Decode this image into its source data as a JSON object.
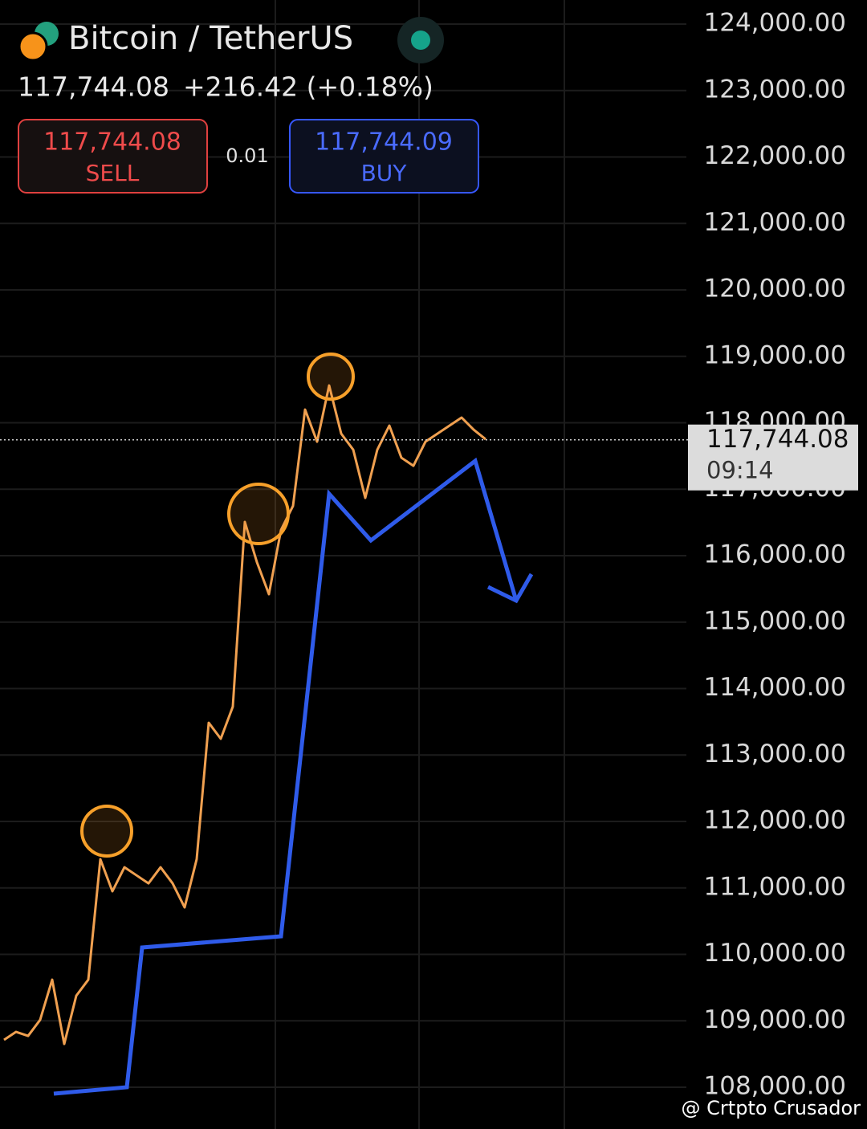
{
  "header": {
    "title": "Bitcoin / TetherUS",
    "price": "117,744.08",
    "change": "+216.42 (+0.18%)",
    "sell_price": "117,744.08",
    "sell_label": "SELL",
    "spread": "0.01",
    "buy_price": "117,744.09",
    "buy_label": "BUY"
  },
  "watermark": "@ Crtpto Crusador",
  "chart_data": {
    "type": "line",
    "categories": [
      null,
      null,
      null,
      null,
      null,
      null,
      null,
      null,
      null,
      null,
      null,
      null,
      null,
      null,
      null,
      null,
      null,
      null,
      null,
      null,
      null,
      null,
      null,
      null,
      null,
      null,
      null,
      null,
      null,
      null,
      null,
      null,
      null,
      null,
      null,
      null,
      null,
      null,
      null,
      null,
      null
    ],
    "values": [
      108713,
      108834,
      108773,
      109015,
      109619,
      108652,
      109378,
      109619,
      111432,
      110949,
      111311,
      111190,
      111069,
      111311,
      111069,
      110707,
      111432,
      113486,
      113245,
      113728,
      116508,
      115903,
      115420,
      116387,
      116749,
      118199,
      117716,
      118562,
      117837,
      117595,
      116870,
      117595,
      117958,
      117474,
      117353,
      117716,
      117837,
      117958,
      118079,
      117897,
      117752
    ],
    "color": "#f0a050",
    "ylim": [
      107372,
      124363
    ],
    "yticks": [
      {
        "value": 108000,
        "label": "108,000.00"
      },
      {
        "value": 109000,
        "label": "109,000.00"
      },
      {
        "value": 110000,
        "label": "110,000.00"
      },
      {
        "value": 111000,
        "label": "111,000.00"
      },
      {
        "value": 112000,
        "label": "112,000.00"
      },
      {
        "value": 113000,
        "label": "113,000.00"
      },
      {
        "value": 114000,
        "label": "114,000.00"
      },
      {
        "value": 115000,
        "label": "115,000.00"
      },
      {
        "value": 116000,
        "label": "116,000.00"
      },
      {
        "value": 117000,
        "label": "117,000.00"
      },
      {
        "value": 118000,
        "label": "118,000.00"
      },
      {
        "value": 119000,
        "label": "119,000.00"
      },
      {
        "value": 120000,
        "label": "120,000.00"
      },
      {
        "value": 121000,
        "label": "121,000.00"
      },
      {
        "value": 122000,
        "label": "122,000.00"
      },
      {
        "value": 123000,
        "label": "123,000.00"
      },
      {
        "value": 124000,
        "label": "124,000.00"
      }
    ],
    "grid": true,
    "last_price": {
      "value": 117744.08,
      "label": "117,744.08"
    },
    "countdown": "09:14"
  }
}
